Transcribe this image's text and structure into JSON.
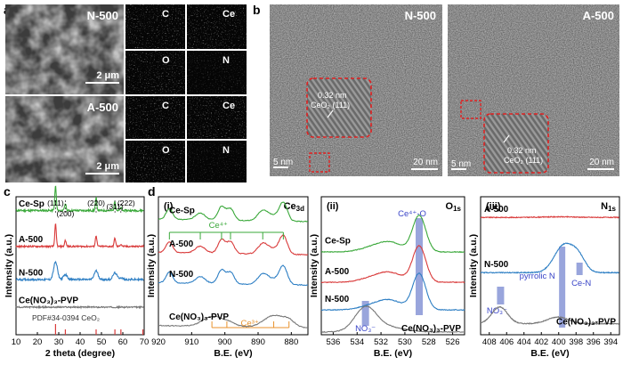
{
  "figure": {
    "panel_labels": [
      "a",
      "b",
      "c",
      "d"
    ],
    "a": {
      "sem": [
        {
          "name": "N-500",
          "scale": "2 μm"
        },
        {
          "name": "A-500",
          "scale": "2 μm"
        }
      ],
      "maps": [
        {
          "element": "C",
          "color": "#2fb8c4"
        },
        {
          "element": "Ce",
          "color": "#34c33a"
        },
        {
          "element": "O",
          "color": "#d8262b"
        },
        {
          "element": "N",
          "color": "#aeb3c8"
        }
      ]
    },
    "b": {
      "images": [
        {
          "name": "N-500",
          "spacing": "0.32 nm",
          "plane": "CeO₂ (111)",
          "scale_small": "5 nm",
          "scale_large": "20 nm"
        },
        {
          "name": "A-500",
          "spacing": "0.32 nm",
          "plane": "CeO₂ (111)",
          "scale_small": "5 nm",
          "scale_large": "20 nm"
        }
      ]
    }
  },
  "chart_data": [
    {
      "id": "xrd",
      "type": "line",
      "panel": "c",
      "xlabel": "2 theta (degree)",
      "ylabel": "Intensity (a.u.)",
      "xlim": [
        10,
        70
      ],
      "xticks": [
        10,
        20,
        30,
        40,
        50,
        60,
        70
      ],
      "peaks": [
        {
          "pos": 28.5,
          "label": "(111)"
        },
        {
          "pos": 33.1,
          "label": "(200)"
        },
        {
          "pos": 47.5,
          "label": "(220)"
        },
        {
          "pos": 56.3,
          "label": "(311)"
        },
        {
          "pos": 59.1,
          "label": "(222)"
        }
      ],
      "series": [
        {
          "name": "Ce-Sp",
          "color": "#3aa83a",
          "offset": 0.9,
          "amp": 1.0,
          "noise": 0.015
        },
        {
          "name": "A-500",
          "color": "#d93b3b",
          "offset": 0.64,
          "amp": 0.9,
          "noise": 0.012
        },
        {
          "name": "N-500",
          "color": "#2e7fc4",
          "offset": 0.4,
          "amp": 0.7,
          "noise": 0.014,
          "broad": true
        },
        {
          "name": "Ce(NO₃)₃-PVP",
          "color": "#777777",
          "offset": 0.2,
          "amp": 0.0,
          "noise": 0.01
        }
      ],
      "reference": {
        "label": "PDF#34-0394 CeO₂",
        "color": "#d93b3b",
        "lines": [
          28.5,
          33.1,
          47.5,
          56.3,
          59.1,
          69.4
        ]
      }
    },
    {
      "id": "xps-ce",
      "type": "line",
      "panel": "d",
      "subpanel": "(i)",
      "region": "Ce",
      "region_sub": "3d",
      "xlabel": "B.E. (eV)",
      "ylabel": "Intensity (a.u.)",
      "xlim": [
        920,
        875
      ],
      "xticks": [
        920,
        910,
        900,
        890,
        880
      ],
      "ce4_label": "Ce⁴⁺",
      "ce3_label": "Ce³⁺",
      "ce4_lines": [
        916.7,
        907.4,
        901.0,
        898.3,
        888.6,
        882.4
      ],
      "ce3_lines": [
        903.9,
        899.4,
        885.3,
        880.7
      ],
      "series": [
        {
          "name": "Ce-Sp",
          "color": "#3aa83a",
          "offset": 0.82
        },
        {
          "name": "A-500",
          "color": "#d93b3b",
          "offset": 0.58
        },
        {
          "name": "N-500",
          "color": "#2e7fc4",
          "offset": 0.36
        },
        {
          "name": "Ce(NO₃)₃-PVP",
          "color": "#777777",
          "offset": 0.05
        }
      ]
    },
    {
      "id": "xps-o",
      "type": "line",
      "panel": "d",
      "subpanel": "(ii)",
      "region": "O",
      "region_sub": "1s",
      "xlabel": "B.E. (eV)",
      "ylabel": "Intensity (a.u.)",
      "xlim": [
        537,
        525
      ],
      "xticks": [
        536,
        534,
        532,
        530,
        528,
        526
      ],
      "bands": [
        {
          "center": 528.8,
          "label": "Ce⁴⁺-O"
        },
        {
          "center": 533.3,
          "label": "NO₃⁻"
        }
      ],
      "series": [
        {
          "name": "Ce-Sp",
          "color": "#3aa83a",
          "offset": 0.6
        },
        {
          "name": "A-500",
          "color": "#d93b3b",
          "offset": 0.38
        },
        {
          "name": "N-500",
          "color": "#2e7fc4",
          "offset": 0.18
        },
        {
          "name": "Ce(NO₃)₃-PVP",
          "color": "#777777",
          "offset": 0.02
        }
      ]
    },
    {
      "id": "xps-n",
      "type": "line",
      "panel": "d",
      "subpanel": "(iii)",
      "region": "N",
      "region_sub": "1s",
      "xlabel": "B.E. (eV)",
      "ylabel": "Intensity (a.u.)",
      "xlim": [
        409,
        393
      ],
      "xticks": [
        408,
        406,
        404,
        402,
        400,
        398,
        396,
        394
      ],
      "bands": [
        {
          "center": 406.7,
          "label": "NO₃⁻"
        },
        {
          "center": 399.6,
          "label": "pyrrolic N"
        },
        {
          "center": 397.6,
          "label": "Ce-N"
        }
      ],
      "series": [
        {
          "name": "A-500",
          "color": "#d93b3b",
          "offset": 0.85
        },
        {
          "name": "N-500",
          "color": "#2e7fc4",
          "offset": 0.45
        },
        {
          "name": "Ce(NO₃)₃-PVP",
          "color": "#777777",
          "offset": 0.08
        }
      ]
    }
  ]
}
